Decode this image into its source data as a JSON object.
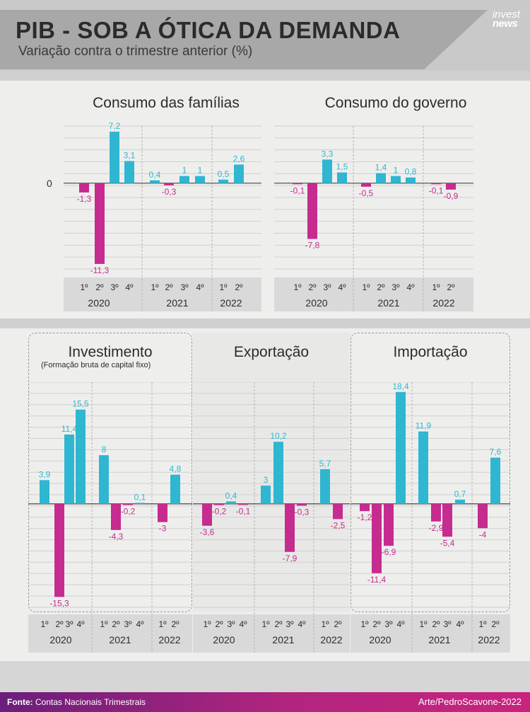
{
  "header": {
    "title": "PIB - SOB A ÓTICA DA DEMANDA",
    "subtitle": "Variação contra o trimestre anterior (%)",
    "logo_line1": "invest",
    "logo_line2": "news"
  },
  "zero_label": "0",
  "colors": {
    "positive": "#2fb6d1",
    "negative": "#c62b8f",
    "axis_band": "#d9d9d9"
  },
  "footer": {
    "source_label": "Fonte:",
    "source_text": "Contas Nacionais Trimestrais",
    "credit": "Arte/PedroScavone-2022"
  },
  "chart_data": [
    {
      "type": "bar",
      "title": "Consumo das famílias",
      "subtitle": "",
      "years": [
        "2020",
        "2021",
        "2022"
      ],
      "quarter_labels": [
        [
          "1º",
          "2º",
          "3º",
          "4º"
        ],
        [
          "1º",
          "2º",
          "3º",
          "4º"
        ],
        [
          "1º",
          "2º"
        ]
      ],
      "categories": [
        "1º 2020",
        "2º 2020",
        "3º 2020",
        "4º 2020",
        "1º 2021",
        "2º 2021",
        "3º 2021",
        "4º 2021",
        "1º 2022",
        "2º 2022"
      ],
      "values": [
        -1.3,
        -11.3,
        7.2,
        3.1,
        0.4,
        -0.3,
        1,
        1,
        0.5,
        2.6
      ],
      "labels": [
        "-1,3",
        "-11,3",
        "7,2",
        "3,1",
        "0,4",
        "-0,3",
        "1",
        "1",
        "0,5",
        "2,6"
      ],
      "ylim": [
        -12,
        8
      ]
    },
    {
      "type": "bar",
      "title": "Consumo do governo",
      "subtitle": "",
      "years": [
        "2020",
        "2021",
        "2022"
      ],
      "quarter_labels": [
        [
          "1º",
          "2º",
          "3º",
          "4º"
        ],
        [
          "1º",
          "2º",
          "3º",
          "4º"
        ],
        [
          "1º",
          "2º"
        ]
      ],
      "categories": [
        "1º 2020",
        "2º 2020",
        "3º 2020",
        "4º 2020",
        "1º 2021",
        "2º 2021",
        "3º 2021",
        "4º 2021",
        "1º 2022",
        "2º 2022"
      ],
      "values": [
        -0.1,
        -7.8,
        3.3,
        1.5,
        -0.5,
        1.4,
        1,
        0.8,
        -0.1,
        -0.9
      ],
      "labels": [
        "-0,1",
        "-7,8",
        "3,3",
        "1,5",
        "-0,5",
        "1,4",
        "1",
        "0,8",
        "-0,1",
        "-0,9"
      ],
      "ylim": [
        -12,
        8
      ]
    },
    {
      "type": "bar",
      "title": "Investimento",
      "subtitle": "(Formação bruta de capital fixo)",
      "years": [
        "2020",
        "2021",
        "2022"
      ],
      "quarter_labels": [
        [
          "1º",
          "2º",
          "3º",
          "4º"
        ],
        [
          "1º",
          "2º",
          "3º",
          "4º"
        ],
        [
          "1º",
          "2º"
        ]
      ],
      "categories": [
        "1º 2020",
        "2º 2020",
        "3º 2020",
        "4º 2020",
        "1º 2021",
        "2º 2021",
        "3º 2021",
        "4º 2021",
        "1º 2022",
        "2º 2022"
      ],
      "values": [
        3.9,
        -15.3,
        11.4,
        15.5,
        8,
        -4.3,
        -0.2,
        0.1,
        -3,
        4.8
      ],
      "labels": [
        "3,9",
        "-15,3",
        "11,4",
        "15,5",
        "8",
        "-4,3",
        "-0,2",
        "0,1",
        "-3",
        "4,8"
      ],
      "ylim": [
        -17,
        20
      ]
    },
    {
      "type": "bar",
      "title": "Exportação",
      "subtitle": "",
      "years": [
        "2020",
        "2021",
        "2022"
      ],
      "quarter_labels": [
        [
          "1º",
          "2º",
          "3º",
          "4º"
        ],
        [
          "1º",
          "2º",
          "3º",
          "4º"
        ],
        [
          "1º",
          "2º"
        ]
      ],
      "categories": [
        "1º 2020",
        "2º 2020",
        "3º 2020",
        "4º 2020",
        "1º 2021",
        "2º 2021",
        "3º 2021",
        "4º 2021",
        "1º 2022",
        "2º 2022"
      ],
      "values": [
        -3.6,
        -0.2,
        0.4,
        -0.1,
        3,
        10.2,
        -7.9,
        -0.3,
        5.7,
        -2.5
      ],
      "labels": [
        "-3,6",
        "-0,2",
        "0,4",
        "-0,1",
        "3",
        "10,2",
        "-7,9",
        "-0,3",
        "5,7",
        "-2,5"
      ],
      "ylim": [
        -17,
        20
      ]
    },
    {
      "type": "bar",
      "title": "Importação",
      "subtitle": "",
      "years": [
        "2020",
        "2021",
        "2022"
      ],
      "quarter_labels": [
        [
          "1º",
          "2º",
          "3º",
          "4º"
        ],
        [
          "1º",
          "2º",
          "3º",
          "4º"
        ],
        [
          "1º",
          "2º"
        ]
      ],
      "categories": [
        "1º 2020",
        "2º 2020",
        "3º 2020",
        "4º 2020",
        "1º 2021",
        "2º 2021",
        "3º 2021",
        "4º 2021",
        "1º 2022",
        "2º 2022"
      ],
      "values": [
        -1.2,
        -11.4,
        -6.9,
        18.4,
        11.9,
        -2.9,
        -5.4,
        0.7,
        -4,
        7.6
      ],
      "labels": [
        "-1,2",
        "-11,4",
        "-6,9",
        "18,4",
        "11,9",
        "-2,9",
        "-5,4",
        "0,7",
        "-4",
        "7,6"
      ],
      "ylim": [
        -17,
        20
      ]
    }
  ]
}
